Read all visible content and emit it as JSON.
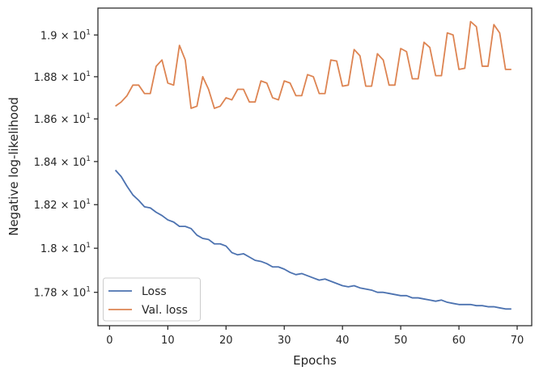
{
  "chart_data": {
    "type": "line",
    "title": "",
    "xlabel": "Epochs",
    "ylabel": "Negative log-likelihood",
    "xlim": [
      -2,
      72.5
    ],
    "ylim": [
      17.65,
      19.13
    ],
    "y_scale": "log",
    "grid": false,
    "legend_position": "lower-left",
    "x_ticks": [
      0,
      10,
      20,
      30,
      40,
      50,
      60,
      70
    ],
    "x_tick_labels": [
      "0",
      "10",
      "20",
      "30",
      "40",
      "50",
      "60",
      "70"
    ],
    "y_ticks": [
      17.8,
      18.0,
      18.2,
      18.4,
      18.6,
      18.8,
      19.0
    ],
    "y_tick_labels": [
      {
        "mantissa": "1.78",
        "exp": "1"
      },
      {
        "mantissa": "1.8",
        "exp": "1"
      },
      {
        "mantissa": "1.82",
        "exp": "1"
      },
      {
        "mantissa": "1.84",
        "exp": "1"
      },
      {
        "mantissa": "1.86",
        "exp": "1"
      },
      {
        "mantissa": "1.88",
        "exp": "1"
      },
      {
        "mantissa": "1.9",
        "exp": "1"
      }
    ],
    "times_symbol": "×",
    "base": "10",
    "x": [
      1,
      2,
      3,
      4,
      5,
      6,
      7,
      8,
      9,
      10,
      11,
      12,
      13,
      14,
      15,
      16,
      17,
      18,
      19,
      20,
      21,
      22,
      23,
      24,
      25,
      26,
      27,
      28,
      29,
      30,
      31,
      32,
      33,
      34,
      35,
      36,
      37,
      38,
      39,
      40,
      41,
      42,
      43,
      44,
      45,
      46,
      47,
      48,
      49,
      50,
      51,
      52,
      53,
      54,
      55,
      56,
      57,
      58,
      59,
      60,
      61,
      62,
      63,
      64,
      65,
      66,
      67,
      68,
      69
    ],
    "series": [
      {
        "name": "Loss",
        "color": "#4c72b0",
        "values": [
          18.36,
          18.33,
          18.285,
          18.245,
          18.22,
          18.19,
          18.185,
          18.165,
          18.15,
          18.13,
          18.12,
          18.1,
          18.1,
          18.09,
          18.06,
          18.045,
          18.04,
          18.02,
          18.02,
          18.01,
          17.98,
          17.97,
          17.975,
          17.96,
          17.945,
          17.94,
          17.93,
          17.915,
          17.915,
          17.905,
          17.89,
          17.88,
          17.885,
          17.875,
          17.865,
          17.855,
          17.86,
          17.85,
          17.84,
          17.83,
          17.825,
          17.83,
          17.82,
          17.815,
          17.81,
          17.8,
          17.8,
          17.795,
          17.79,
          17.785,
          17.785,
          17.775,
          17.775,
          17.77,
          17.765,
          17.76,
          17.765,
          17.755,
          17.75,
          17.745,
          17.745,
          17.745,
          17.74,
          17.74,
          17.735,
          17.735,
          17.73,
          17.725,
          17.725
        ]
      },
      {
        "name": "Val. loss",
        "color": "#dd8452",
        "values": [
          18.66,
          18.68,
          18.71,
          18.76,
          18.76,
          18.72,
          18.72,
          18.85,
          18.88,
          18.77,
          18.76,
          18.95,
          18.88,
          18.65,
          18.66,
          18.8,
          18.74,
          18.65,
          18.66,
          18.7,
          18.69,
          18.74,
          18.74,
          18.68,
          18.68,
          18.78,
          18.77,
          18.7,
          18.69,
          18.78,
          18.77,
          18.71,
          18.71,
          18.81,
          18.8,
          18.72,
          18.72,
          18.88,
          18.875,
          18.755,
          18.76,
          18.93,
          18.9,
          18.755,
          18.755,
          18.91,
          18.88,
          18.76,
          18.76,
          18.935,
          18.92,
          18.79,
          18.79,
          18.965,
          18.94,
          18.805,
          18.805,
          19.01,
          19.0,
          18.835,
          18.84,
          19.065,
          19.04,
          18.85,
          18.85,
          19.05,
          19.01,
          18.835,
          18.835
        ]
      }
    ]
  }
}
